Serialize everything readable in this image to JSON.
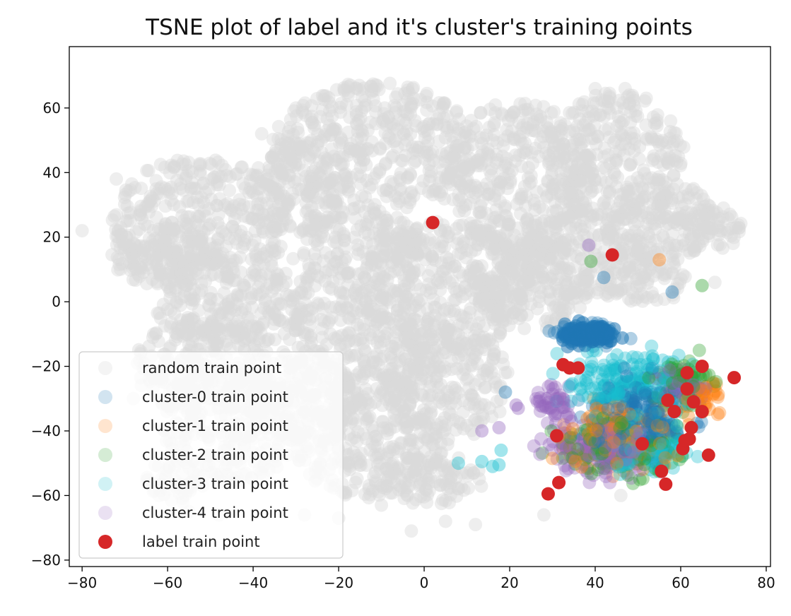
{
  "chart_data": {
    "type": "scatter",
    "title": "TSNE plot of label and it's cluster's training points",
    "xlabel": "",
    "ylabel": "",
    "xlim": [
      -83,
      81
    ],
    "ylim": [
      -82,
      79
    ],
    "xticks": [
      -80,
      -60,
      -40,
      -20,
      0,
      20,
      40,
      60,
      80
    ],
    "yticks": [
      -80,
      -60,
      -40,
      -20,
      0,
      20,
      40,
      60
    ],
    "xtick_labels": [
      "−80",
      "−60",
      "−40",
      "−20",
      "0",
      "20",
      "40",
      "60",
      "80"
    ],
    "ytick_labels": [
      "−80",
      "−60",
      "−40",
      "−20",
      "0",
      "20",
      "40",
      "60"
    ],
    "grid": false,
    "legend_position": "lower-left",
    "legend": [
      {
        "name": "random train point",
        "color": "#d9d9d9"
      },
      {
        "name": "cluster-0 train point",
        "color": "#1f77b4"
      },
      {
        "name": "cluster-1 train point",
        "color": "#ff7f0e"
      },
      {
        "name": "cluster-2 train point",
        "color": "#2ca02c"
      },
      {
        "name": "cluster-3 train point",
        "color": "#17becf"
      },
      {
        "name": "cluster-4 train point",
        "color": "#9467bd"
      },
      {
        "name": "label train point",
        "color": "#d62728"
      }
    ],
    "random_regions": [
      {
        "x": -52,
        "y": 25,
        "rx": 21,
        "ry": 20
      },
      {
        "x": -62,
        "y": 15,
        "rx": 12,
        "ry": 10
      },
      {
        "x": -45,
        "y": 0,
        "rx": 19,
        "ry": 14
      },
      {
        "x": -52,
        "y": -20,
        "rx": 16,
        "ry": 15
      },
      {
        "x": -45,
        "y": -38,
        "rx": 16,
        "ry": 18
      },
      {
        "x": -58,
        "y": -55,
        "rx": 7,
        "ry": 8
      },
      {
        "x": -30,
        "y": 35,
        "rx": 10,
        "ry": 15
      },
      {
        "x": -12,
        "y": 48,
        "rx": 24,
        "ry": 20
      },
      {
        "x": -15,
        "y": 15,
        "rx": 16,
        "ry": 14
      },
      {
        "x": -15,
        "y": -15,
        "rx": 18,
        "ry": 18
      },
      {
        "x": -28,
        "y": -30,
        "rx": 12,
        "ry": 14
      },
      {
        "x": -12,
        "y": -45,
        "rx": 18,
        "ry": 16
      },
      {
        "x": 5,
        "y": 5,
        "rx": 20,
        "ry": 20
      },
      {
        "x": 5,
        "y": -25,
        "rx": 15,
        "ry": 18
      },
      {
        "x": 2,
        "y": -55,
        "rx": 12,
        "ry": 8
      },
      {
        "x": 22,
        "y": 38,
        "rx": 18,
        "ry": 24
      },
      {
        "x": 45,
        "y": 45,
        "rx": 16,
        "ry": 20
      },
      {
        "x": 55,
        "y": 25,
        "rx": 14,
        "ry": 12
      },
      {
        "x": 66,
        "y": 22,
        "rx": 9,
        "ry": 7
      },
      {
        "x": 38,
        "y": 15,
        "rx": 16,
        "ry": 14
      },
      {
        "x": 52,
        "y": 8,
        "rx": 10,
        "ry": 9
      },
      {
        "x": 25,
        "y": 5,
        "rx": 14,
        "ry": 14
      }
    ],
    "cluster_regions": {
      "cluster-0": [
        {
          "x": 38,
          "y": -10,
          "rx": 13,
          "ry": 6
        },
        {
          "x": 50,
          "y": -35,
          "rx": 18,
          "ry": 18
        }
      ],
      "cluster-1": [
        {
          "x": 45,
          "y": -42,
          "rx": 20,
          "ry": 14
        },
        {
          "x": 65,
          "y": -30,
          "rx": 8,
          "ry": 10
        }
      ],
      "cluster-2": [
        {
          "x": 45,
          "y": -45,
          "rx": 20,
          "ry": 12
        },
        {
          "x": 60,
          "y": -25,
          "rx": 10,
          "ry": 12
        }
      ],
      "cluster-3": [
        {
          "x": 48,
          "y": -25,
          "rx": 20,
          "ry": 14
        },
        {
          "x": 52,
          "y": -45,
          "rx": 17,
          "ry": 12
        }
      ],
      "cluster-4": [
        {
          "x": 42,
          "y": -45,
          "rx": 20,
          "ry": 14
        },
        {
          "x": 30,
          "y": -30,
          "rx": 7,
          "ry": 10
        },
        {
          "x": 60,
          "y": -25,
          "rx": 10,
          "ry": 8
        }
      ]
    },
    "outliers": {
      "cluster-0": [
        [
          42,
          7.5
        ],
        [
          58,
          3
        ],
        [
          19,
          -28
        ]
      ],
      "cluster-1": [
        [
          55,
          13
        ]
      ],
      "cluster-2": [
        [
          39,
          12.5
        ],
        [
          65,
          5
        ]
      ],
      "cluster-3": [
        [
          8,
          -50
        ],
        [
          16,
          -51
        ],
        [
          17.5,
          -50.5
        ],
        [
          13.5,
          -49.5
        ],
        [
          18,
          -46
        ]
      ],
      "cluster-4": [
        [
          38.5,
          17.5
        ],
        [
          13.5,
          -40
        ],
        [
          17.5,
          -39
        ],
        [
          21.5,
          -32
        ],
        [
          22,
          -33
        ]
      ]
    },
    "label_points": {
      "x": [
        2,
        44,
        32.5,
        34,
        36,
        31,
        29,
        31.5,
        51,
        55.5,
        56.5,
        61.5,
        61.5,
        62.5,
        65,
        66.5,
        60.5,
        62,
        63,
        65,
        57,
        58.5,
        72.5,
        61
      ],
      "y": [
        24.5,
        14.5,
        -19.5,
        -20.5,
        -20.5,
        -41.5,
        -59.5,
        -56,
        -44,
        -52.5,
        -56.5,
        -22,
        -27,
        -39,
        -20,
        -47.5,
        -45.5,
        -42.5,
        -31,
        -34,
        -30.5,
        -34,
        -23.5,
        -43
      ]
    }
  }
}
